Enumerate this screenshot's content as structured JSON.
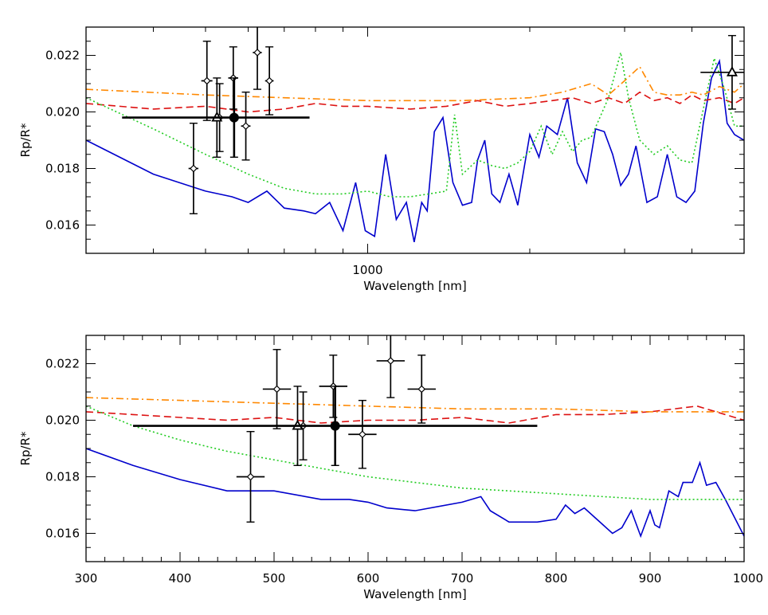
{
  "chart_data": [
    {
      "type": "line",
      "xscale": "log",
      "xlabel": "Wavelength [nm]",
      "ylabel": "Rp/R*",
      "xlim": [
        300,
        5000
      ],
      "ylim": [
        0.015,
        0.023
      ],
      "x_tick_labels": [
        {
          "value": 1000,
          "label": "1000"
        }
      ],
      "y_tick_labels": [
        {
          "value": 0.016,
          "label": "0.016"
        },
        {
          "value": 0.018,
          "label": "0.018"
        },
        {
          "value": 0.02,
          "label": "0.020"
        },
        {
          "value": 0.022,
          "label": "0.022"
        }
      ],
      "series": [
        {
          "style": "solid",
          "color": "#0000cc",
          "x": [
            300,
            400,
            500,
            560,
            600,
            650,
            700,
            760,
            800,
            850,
            900,
            950,
            990,
            1030,
            1080,
            1130,
            1180,
            1220,
            1260,
            1290,
            1330,
            1380,
            1440,
            1500,
            1560,
            1600,
            1650,
            1700,
            1760,
            1830,
            1900,
            2000,
            2080,
            2150,
            2250,
            2350,
            2450,
            2550,
            2650,
            2750,
            2850,
            2950,
            3050,
            3150,
            3300,
            3450,
            3600,
            3750,
            3900,
            4050,
            4200,
            4350,
            4500,
            4650,
            4800,
            5000
          ],
          "y": [
            0.019,
            0.0178,
            0.0172,
            0.017,
            0.0168,
            0.0172,
            0.0166,
            0.0165,
            0.0164,
            0.0168,
            0.0158,
            0.0175,
            0.0158,
            0.0156,
            0.0185,
            0.0162,
            0.0168,
            0.0154,
            0.0168,
            0.0165,
            0.0193,
            0.0198,
            0.0175,
            0.0167,
            0.0168,
            0.0183,
            0.019,
            0.0171,
            0.0168,
            0.0178,
            0.0167,
            0.0192,
            0.0184,
            0.0195,
            0.0192,
            0.0205,
            0.0182,
            0.0175,
            0.0194,
            0.0193,
            0.0185,
            0.0174,
            0.0178,
            0.0188,
            0.0168,
            0.017,
            0.0185,
            0.017,
            0.0168,
            0.0172,
            0.0196,
            0.0212,
            0.0218,
            0.0196,
            0.0192,
            0.019
          ]
        },
        {
          "style": "dashed",
          "color": "#dd1111",
          "x": [
            300,
            400,
            500,
            600,
            700,
            800,
            900,
            1000,
            1200,
            1400,
            1600,
            1800,
            2000,
            2200,
            2400,
            2600,
            2800,
            3000,
            3200,
            3400,
            3600,
            3800,
            4000,
            4200,
            4500,
            4800,
            5000
          ],
          "y": [
            0.0203,
            0.0201,
            0.0202,
            0.02,
            0.0201,
            0.0203,
            0.0202,
            0.0202,
            0.0201,
            0.0202,
            0.0204,
            0.0202,
            0.0203,
            0.0204,
            0.0205,
            0.0203,
            0.0205,
            0.0203,
            0.0207,
            0.0204,
            0.0205,
            0.0203,
            0.0206,
            0.0204,
            0.0205,
            0.0203,
            0.0205
          ]
        },
        {
          "style": "dotted",
          "color": "#22cc22",
          "x": [
            300,
            400,
            500,
            600,
            700,
            800,
            900,
            1000,
            1100,
            1200,
            1300,
            1400,
            1450,
            1500,
            1600,
            1700,
            1800,
            1900,
            2000,
            2100,
            2200,
            2300,
            2400,
            2500,
            2600,
            2800,
            2950,
            3050,
            3200,
            3400,
            3600,
            3800,
            4000,
            4200,
            4400,
            4600,
            4800,
            5000
          ],
          "y": [
            0.0205,
            0.0194,
            0.0185,
            0.0178,
            0.0173,
            0.0171,
            0.0171,
            0.0172,
            0.017,
            0.017,
            0.0171,
            0.0172,
            0.0199,
            0.0178,
            0.0183,
            0.0181,
            0.018,
            0.0182,
            0.0186,
            0.0195,
            0.0185,
            0.0193,
            0.0186,
            0.019,
            0.0191,
            0.0205,
            0.0221,
            0.0205,
            0.019,
            0.0185,
            0.0188,
            0.0183,
            0.0182,
            0.0201,
            0.0219,
            0.0208,
            0.0195,
            0.0195
          ]
        },
        {
          "style": "dashdot",
          "color": "#ff8800",
          "x": [
            300,
            500,
            700,
            1000,
            1500,
            2000,
            2300,
            2600,
            2800,
            3000,
            3200,
            3400,
            3600,
            3800,
            4000,
            4200,
            4500,
            4800,
            5000
          ],
          "y": [
            0.0208,
            0.0206,
            0.0205,
            0.0204,
            0.0204,
            0.0205,
            0.0207,
            0.021,
            0.0206,
            0.0211,
            0.0216,
            0.0207,
            0.0206,
            0.0206,
            0.0207,
            0.0206,
            0.0209,
            0.0207,
            0.021
          ]
        }
      ],
      "points": [
        {
          "x": 475,
          "y": 0.018,
          "yerr": 0.0016,
          "xerr": 10,
          "marker": "diamond"
        },
        {
          "x": 503,
          "y": 0.0211,
          "yerr": 0.0014,
          "xerr": 12,
          "marker": "diamond"
        },
        {
          "x": 531,
          "y": 0.0198,
          "yerr": 0.0012,
          "xerr": 7,
          "marker": "diamond"
        },
        {
          "x": 563,
          "y": 0.0212,
          "yerr": 0.0011,
          "xerr": 12,
          "marker": "diamond"
        },
        {
          "x": 594,
          "y": 0.0195,
          "yerr": 0.0012,
          "xerr": 12,
          "marker": "diamond"
        },
        {
          "x": 624,
          "y": 0.0221,
          "yerr": 0.0013,
          "xerr": 12,
          "marker": "diamond"
        },
        {
          "x": 657,
          "y": 0.0211,
          "yerr": 0.0012,
          "xerr": 12,
          "marker": "diamond"
        },
        {
          "x": 525,
          "y": 0.0198,
          "yerr": 0.0014,
          "xerr": 0,
          "marker": "triangle"
        },
        {
          "x": 565,
          "y": 0.0198,
          "yerr": 0.0014,
          "xerr": 215,
          "marker": "circle"
        },
        {
          "x": 4750,
          "y": 0.0214,
          "yerr": 0.0013,
          "xerr": 600,
          "marker": "triangle"
        }
      ]
    },
    {
      "type": "line",
      "xscale": "linear",
      "xlabel": "Wavelength [nm]",
      "ylabel": "Rp/R*",
      "xlim": [
        300,
        1000
      ],
      "ylim": [
        0.015,
        0.023
      ],
      "x_tick_labels": [
        {
          "value": 300,
          "label": "300"
        },
        {
          "value": 400,
          "label": "400"
        },
        {
          "value": 500,
          "label": "500"
        },
        {
          "value": 600,
          "label": "600"
        },
        {
          "value": 700,
          "label": "700"
        },
        {
          "value": 800,
          "label": "800"
        },
        {
          "value": 900,
          "label": "900"
        },
        {
          "value": 1000,
          "label": "1000"
        }
      ],
      "y_tick_labels": [
        {
          "value": 0.016,
          "label": "0.016"
        },
        {
          "value": 0.018,
          "label": "0.018"
        },
        {
          "value": 0.02,
          "label": "0.020"
        },
        {
          "value": 0.022,
          "label": "0.022"
        }
      ],
      "series": [
        {
          "style": "solid",
          "color": "#0000cc",
          "x": [
            300,
            350,
            400,
            450,
            500,
            550,
            580,
            600,
            620,
            650,
            700,
            720,
            730,
            750,
            780,
            800,
            810,
            820,
            830,
            850,
            860,
            870,
            880,
            890,
            900,
            905,
            910,
            920,
            930,
            935,
            945,
            953,
            960,
            970,
            980,
            1000
          ],
          "y": [
            0.019,
            0.0184,
            0.0179,
            0.0175,
            0.0175,
            0.0172,
            0.0172,
            0.0171,
            0.0169,
            0.0168,
            0.0171,
            0.0173,
            0.0168,
            0.0164,
            0.0164,
            0.0165,
            0.017,
            0.0167,
            0.0169,
            0.0163,
            0.016,
            0.0162,
            0.0168,
            0.0159,
            0.0168,
            0.0163,
            0.0162,
            0.0175,
            0.0173,
            0.0178,
            0.0178,
            0.0185,
            0.0177,
            0.0178,
            0.0172,
            0.0159
          ]
        },
        {
          "style": "dashed",
          "color": "#dd1111",
          "x": [
            300,
            350,
            400,
            450,
            500,
            550,
            600,
            650,
            700,
            750,
            800,
            850,
            900,
            950,
            1000
          ],
          "y": [
            0.0203,
            0.0202,
            0.0201,
            0.02,
            0.0201,
            0.0199,
            0.02,
            0.02,
            0.0201,
            0.0199,
            0.0202,
            0.0202,
            0.0203,
            0.0205,
            0.02
          ]
        },
        {
          "style": "dotted",
          "color": "#22cc22",
          "x": [
            300,
            350,
            400,
            450,
            500,
            550,
            600,
            650,
            700,
            750,
            800,
            850,
            900,
            950,
            1000
          ],
          "y": [
            0.0205,
            0.0198,
            0.0193,
            0.0189,
            0.0186,
            0.0183,
            0.018,
            0.0178,
            0.0176,
            0.0175,
            0.0174,
            0.0173,
            0.0172,
            0.0172,
            0.0172
          ]
        },
        {
          "style": "dashdot",
          "color": "#ff8800",
          "x": [
            300,
            400,
            500,
            600,
            700,
            800,
            900,
            1000
          ],
          "y": [
            0.0208,
            0.0207,
            0.0206,
            0.0205,
            0.0204,
            0.0204,
            0.0203,
            0.0203
          ]
        }
      ],
      "points": [
        {
          "x": 475,
          "y": 0.018,
          "yerr": 0.0016,
          "xerr": 15,
          "marker": "diamond"
        },
        {
          "x": 503,
          "y": 0.0211,
          "yerr": 0.0014,
          "xerr": 15,
          "marker": "diamond"
        },
        {
          "x": 531,
          "y": 0.0198,
          "yerr": 0.0012,
          "xerr": 5,
          "marker": "diamond"
        },
        {
          "x": 563,
          "y": 0.0212,
          "yerr": 0.0011,
          "xerr": 15,
          "marker": "diamond"
        },
        {
          "x": 594,
          "y": 0.0195,
          "yerr": 0.0012,
          "xerr": 15,
          "marker": "diamond"
        },
        {
          "x": 624,
          "y": 0.0221,
          "yerr": 0.0013,
          "xerr": 15,
          "marker": "diamond"
        },
        {
          "x": 657,
          "y": 0.0211,
          "yerr": 0.0012,
          "xerr": 15,
          "marker": "diamond"
        },
        {
          "x": 525,
          "y": 0.0198,
          "yerr": 0.0014,
          "xerr": 0,
          "marker": "triangle"
        },
        {
          "x": 565,
          "y": 0.0198,
          "yerr": 0.0014,
          "xerr": 215,
          "marker": "circle"
        }
      ]
    }
  ]
}
